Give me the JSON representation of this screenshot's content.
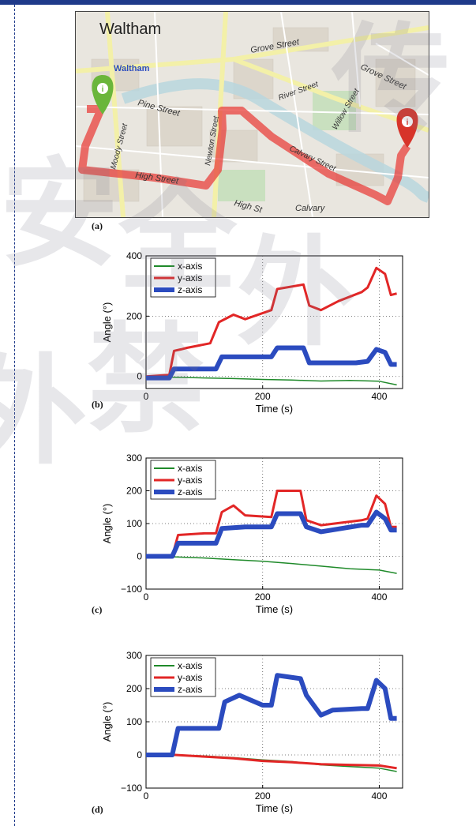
{
  "map": {
    "labels": {
      "city": "Waltham",
      "station": "Waltham",
      "streets": [
        "Grove Street",
        "Grove Street",
        "Pine Street",
        "River Street",
        "Willow Street",
        "Moody Street",
        "Newton Street",
        "Calvary Street",
        "High Street",
        "High St",
        "Calvary"
      ]
    },
    "start_marker_icon": "map-pin-green-icon",
    "end_marker_icon": "map-pin-red-icon",
    "route_color": "#e8403c",
    "marker_colors": {
      "start": "#6ab63b",
      "end": "#d7342a"
    }
  },
  "panels": {
    "a": "(a)",
    "b": "(b)",
    "c": "(c)",
    "d": "(d)"
  },
  "watermark": [
    "安",
    "全",
    "外",
    "传",
    "禁",
    "外"
  ],
  "chart_data": [
    {
      "type": "line",
      "panel": "(b)",
      "xlabel": "Time (s)",
      "ylabel": "Angle (°)",
      "xlim": [
        0,
        440
      ],
      "ylim": [
        -40,
        400
      ],
      "xticks": [
        "0",
        "200",
        "400"
      ],
      "yticks": [
        "0",
        "200",
        "400"
      ],
      "grid": "dotted",
      "legend_position": "top-left",
      "series": [
        {
          "name": "x-axis",
          "color": "#1f8a2a",
          "width": 1.5,
          "x": [
            0,
            30,
            60,
            100,
            150,
            200,
            250,
            300,
            350,
            400,
            430
          ],
          "y": [
            0,
            -2,
            -3,
            -5,
            -7,
            -10,
            -12,
            -15,
            -13,
            -16,
            -28
          ]
        },
        {
          "name": "y-axis",
          "color": "#e22626",
          "width": 3,
          "x": [
            0,
            40,
            48,
            60,
            70,
            110,
            125,
            150,
            170,
            215,
            225,
            270,
            280,
            300,
            330,
            370,
            380,
            395,
            410,
            420,
            430
          ],
          "y": [
            0,
            5,
            85,
            90,
            95,
            110,
            180,
            205,
            190,
            220,
            290,
            305,
            235,
            220,
            250,
            280,
            295,
            360,
            340,
            270,
            275
          ]
        },
        {
          "name": "z-axis",
          "color": "#2b4bbf",
          "width": 6,
          "x": [
            0,
            40,
            48,
            60,
            80,
            120,
            130,
            200,
            215,
            225,
            270,
            280,
            300,
            360,
            380,
            395,
            410,
            420,
            430
          ],
          "y": [
            -5,
            -5,
            25,
            25,
            25,
            25,
            65,
            65,
            65,
            95,
            95,
            45,
            45,
            45,
            50,
            90,
            80,
            40,
            40
          ]
        }
      ]
    },
    {
      "type": "line",
      "panel": "(c)",
      "xlabel": "Time (s)",
      "ylabel": "Angle (°)",
      "xlim": [
        0,
        440
      ],
      "ylim": [
        -100,
        300
      ],
      "xticks": [
        "0",
        "200",
        "400"
      ],
      "yticks": [
        "−100",
        "0",
        "100",
        "200",
        "300"
      ],
      "grid": "dotted",
      "legend_position": "top-left",
      "series": [
        {
          "name": "x-axis",
          "color": "#1f8a2a",
          "width": 1.5,
          "x": [
            0,
            50,
            100,
            150,
            200,
            250,
            300,
            350,
            400,
            430
          ],
          "y": [
            0,
            -2,
            -5,
            -10,
            -15,
            -22,
            -30,
            -38,
            -42,
            -52
          ]
        },
        {
          "name": "y-axis",
          "color": "#e22626",
          "width": 3,
          "x": [
            0,
            45,
            55,
            100,
            120,
            130,
            150,
            170,
            215,
            225,
            265,
            275,
            300,
            370,
            380,
            395,
            410,
            420,
            430
          ],
          "y": [
            0,
            0,
            65,
            70,
            70,
            135,
            155,
            125,
            120,
            200,
            200,
            110,
            95,
            110,
            115,
            185,
            160,
            90,
            90
          ]
        },
        {
          "name": "z-axis",
          "color": "#2b4bbf",
          "width": 6,
          "x": [
            0,
            45,
            55,
            100,
            120,
            130,
            170,
            215,
            225,
            265,
            275,
            300,
            370,
            380,
            395,
            410,
            420,
            430
          ],
          "y": [
            0,
            0,
            40,
            40,
            40,
            85,
            90,
            90,
            130,
            130,
            90,
            75,
            95,
            95,
            135,
            115,
            80,
            80
          ]
        }
      ]
    },
    {
      "type": "line",
      "panel": "(d)",
      "xlabel": "Time (s)",
      "ylabel": "Angle (°)",
      "xlim": [
        0,
        440
      ],
      "ylim": [
        -100,
        300
      ],
      "xticks": [
        "0",
        "200",
        "400"
      ],
      "yticks": [
        "−100",
        "0",
        "100",
        "200",
        "300"
      ],
      "grid": "dotted",
      "legend_position": "top-left",
      "series": [
        {
          "name": "x-axis",
          "color": "#1f8a2a",
          "width": 1.5,
          "x": [
            0,
            50,
            100,
            150,
            200,
            250,
            300,
            350,
            400,
            430
          ],
          "y": [
            0,
            0,
            -3,
            -8,
            -15,
            -20,
            -30,
            -35,
            -40,
            -50
          ]
        },
        {
          "name": "y-axis",
          "color": "#e22626",
          "width": 3,
          "x": [
            0,
            50,
            100,
            150,
            200,
            250,
            300,
            350,
            400,
            430
          ],
          "y": [
            0,
            0,
            -5,
            -10,
            -18,
            -22,
            -28,
            -30,
            -32,
            -40
          ]
        },
        {
          "name": "z-axis",
          "color": "#2b4bbf",
          "width": 6,
          "x": [
            0,
            45,
            55,
            110,
            125,
            135,
            160,
            200,
            215,
            225,
            265,
            275,
            300,
            320,
            370,
            380,
            395,
            410,
            420,
            430
          ],
          "y": [
            0,
            0,
            80,
            80,
            80,
            160,
            180,
            150,
            150,
            240,
            230,
            180,
            120,
            135,
            140,
            140,
            225,
            200,
            110,
            110
          ]
        }
      ]
    }
  ]
}
